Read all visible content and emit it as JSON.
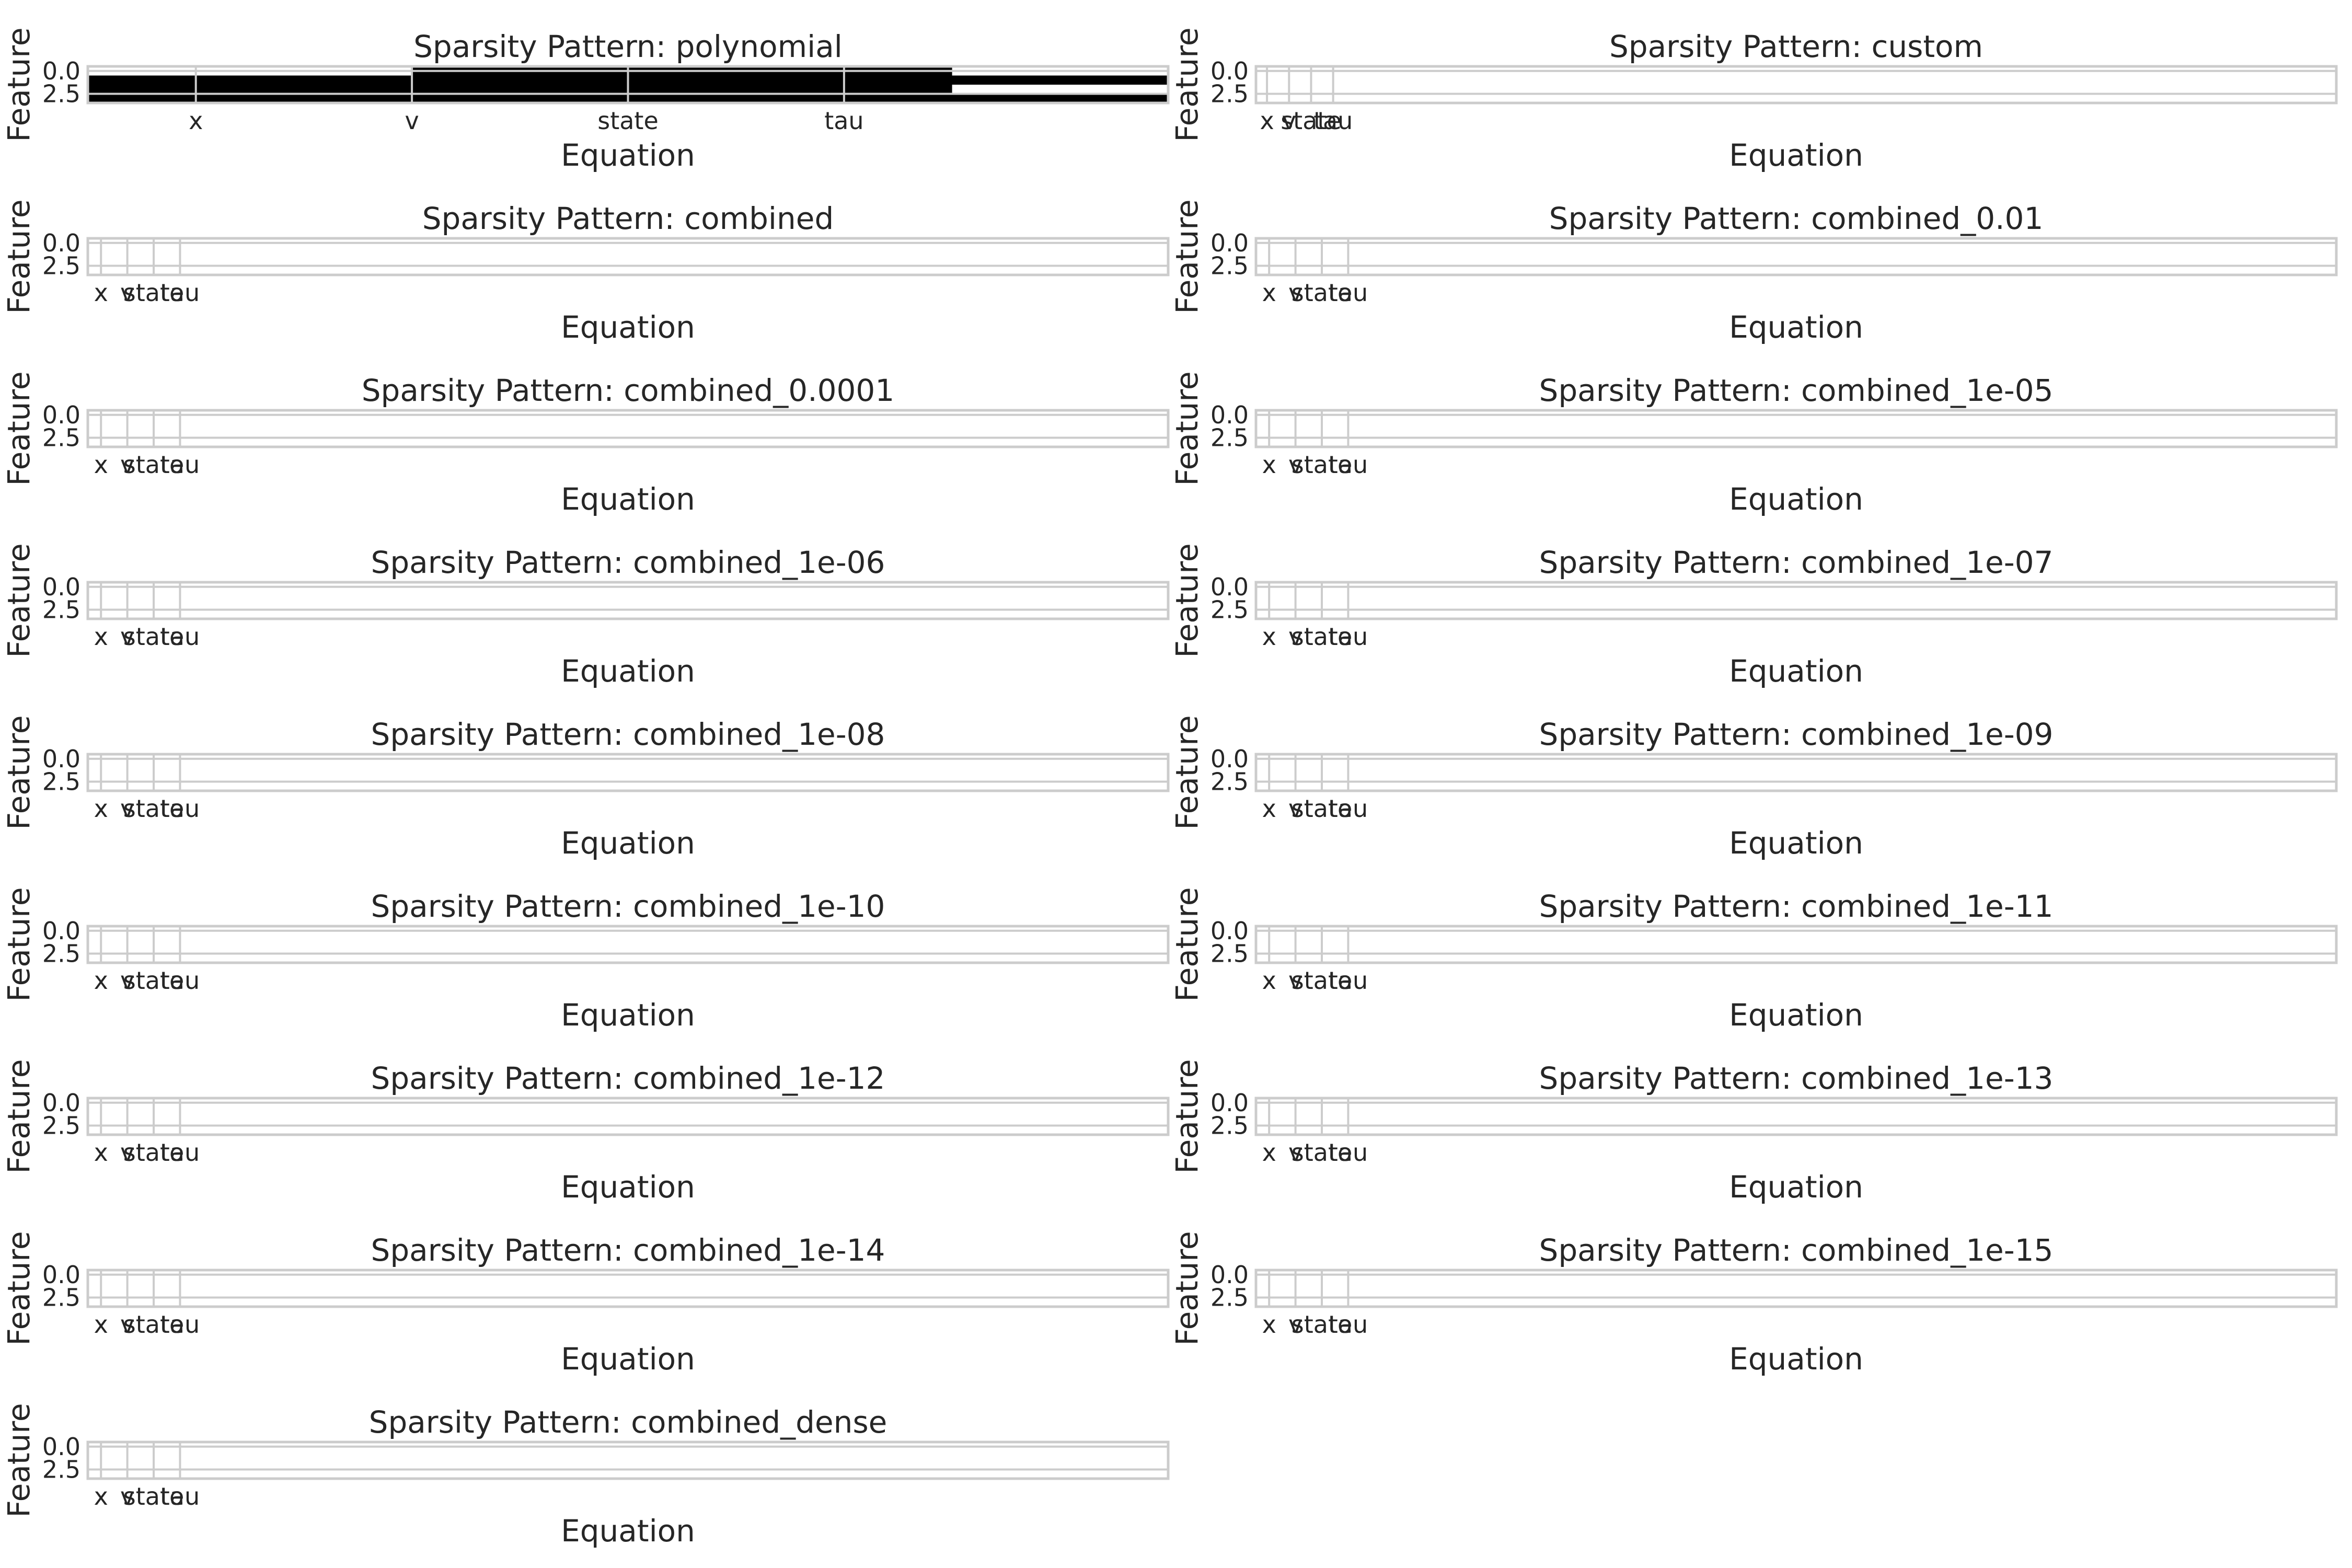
{
  "figure": {
    "background": "#ffffff",
    "grid_color": "#cccccc",
    "axes_edge_color": "#cccccc",
    "cell_fill_color": "#000000",
    "text_color": "#262626"
  },
  "chart_data": [
    {
      "type": "heatmap",
      "title": "Sparsity Pattern: polynomial",
      "xlabel": "Equation",
      "ylabel": "Feature",
      "xticks": [
        "x",
        "v",
        "state",
        "tau"
      ],
      "yticks": [
        "0.0",
        "2.5"
      ],
      "xlim": [
        -0.5,
        4.5
      ],
      "ylim": [
        3.5,
        -0.5
      ],
      "rows": 4,
      "cols": 5,
      "grid": true,
      "cells": [
        {
          "row": 0,
          "col_start": 1,
          "col_end": 3.5
        },
        {
          "row": 1,
          "col_start": -0.5,
          "col_end": 4.5
        },
        {
          "row": 2,
          "col_start": -0.5,
          "col_end": 3.5
        },
        {
          "row": 3,
          "col_start": -0.5,
          "col_end": 4.5
        }
      ]
    },
    {
      "type": "heatmap",
      "title": "Sparsity Pattern: custom",
      "xlabel": "Equation",
      "ylabel": "Feature",
      "xticks": [
        "x",
        "v",
        "state",
        "tau"
      ],
      "yticks": [
        "0.0",
        "2.5"
      ],
      "xlim": [
        -0.5,
        48.5
      ],
      "ylim": [
        3.5,
        -0.5
      ],
      "grid": true,
      "cells": []
    },
    {
      "type": "heatmap",
      "title": "Sparsity Pattern: combined",
      "xlabel": "Equation",
      "ylabel": "Feature",
      "xticks": [
        "x",
        "v",
        "state",
        "tau"
      ],
      "yticks": [
        "0.0",
        "2.5"
      ],
      "xlim": [
        -0.5,
        40.5
      ],
      "ylim": [
        3.5,
        -0.5
      ],
      "grid": true,
      "cells": []
    },
    {
      "type": "heatmap",
      "title": "Sparsity Pattern: combined_0.01",
      "xlabel": "Equation",
      "ylabel": "Feature",
      "xticks": [
        "x",
        "v",
        "state",
        "tau"
      ],
      "yticks": [
        "0.0",
        "2.5"
      ],
      "xlim": [
        -0.5,
        40.5
      ],
      "ylim": [
        3.5,
        -0.5
      ],
      "grid": true,
      "cells": []
    },
    {
      "type": "heatmap",
      "title": "Sparsity Pattern: combined_0.0001",
      "xlabel": "Equation",
      "ylabel": "Feature",
      "xticks": [
        "x",
        "v",
        "state",
        "tau"
      ],
      "yticks": [
        "0.0",
        "2.5"
      ],
      "xlim": [
        -0.5,
        40.5
      ],
      "ylim": [
        3.5,
        -0.5
      ],
      "grid": true,
      "cells": []
    },
    {
      "type": "heatmap",
      "title": "Sparsity Pattern: combined_1e-05",
      "xlabel": "Equation",
      "ylabel": "Feature",
      "xticks": [
        "x",
        "v",
        "state",
        "tau"
      ],
      "yticks": [
        "0.0",
        "2.5"
      ],
      "xlim": [
        -0.5,
        40.5
      ],
      "ylim": [
        3.5,
        -0.5
      ],
      "grid": true,
      "cells": []
    },
    {
      "type": "heatmap",
      "title": "Sparsity Pattern: combined_1e-06",
      "xlabel": "Equation",
      "ylabel": "Feature",
      "xticks": [
        "x",
        "v",
        "state",
        "tau"
      ],
      "yticks": [
        "0.0",
        "2.5"
      ],
      "xlim": [
        -0.5,
        40.5
      ],
      "ylim": [
        3.5,
        -0.5
      ],
      "grid": true,
      "cells": []
    },
    {
      "type": "heatmap",
      "title": "Sparsity Pattern: combined_1e-07",
      "xlabel": "Equation",
      "ylabel": "Feature",
      "xticks": [
        "x",
        "v",
        "state",
        "tau"
      ],
      "yticks": [
        "0.0",
        "2.5"
      ],
      "xlim": [
        -0.5,
        40.5
      ],
      "ylim": [
        3.5,
        -0.5
      ],
      "grid": true,
      "cells": []
    },
    {
      "type": "heatmap",
      "title": "Sparsity Pattern: combined_1e-08",
      "xlabel": "Equation",
      "ylabel": "Feature",
      "xticks": [
        "x",
        "v",
        "state",
        "tau"
      ],
      "yticks": [
        "0.0",
        "2.5"
      ],
      "xlim": [
        -0.5,
        40.5
      ],
      "ylim": [
        3.5,
        -0.5
      ],
      "grid": true,
      "cells": []
    },
    {
      "type": "heatmap",
      "title": "Sparsity Pattern: combined_1e-09",
      "xlabel": "Equation",
      "ylabel": "Feature",
      "xticks": [
        "x",
        "v",
        "state",
        "tau"
      ],
      "yticks": [
        "0.0",
        "2.5"
      ],
      "xlim": [
        -0.5,
        40.5
      ],
      "ylim": [
        3.5,
        -0.5
      ],
      "grid": true,
      "cells": []
    },
    {
      "type": "heatmap",
      "title": "Sparsity Pattern: combined_1e-10",
      "xlabel": "Equation",
      "ylabel": "Feature",
      "xticks": [
        "x",
        "v",
        "state",
        "tau"
      ],
      "yticks": [
        "0.0",
        "2.5"
      ],
      "xlim": [
        -0.5,
        40.5
      ],
      "ylim": [
        3.5,
        -0.5
      ],
      "grid": true,
      "cells": []
    },
    {
      "type": "heatmap",
      "title": "Sparsity Pattern: combined_1e-11",
      "xlabel": "Equation",
      "ylabel": "Feature",
      "xticks": [
        "x",
        "v",
        "state",
        "tau"
      ],
      "yticks": [
        "0.0",
        "2.5"
      ],
      "xlim": [
        -0.5,
        40.5
      ],
      "ylim": [
        3.5,
        -0.5
      ],
      "grid": true,
      "cells": []
    },
    {
      "type": "heatmap",
      "title": "Sparsity Pattern: combined_1e-12",
      "xlabel": "Equation",
      "ylabel": "Feature",
      "xticks": [
        "x",
        "v",
        "state",
        "tau"
      ],
      "yticks": [
        "0.0",
        "2.5"
      ],
      "xlim": [
        -0.5,
        40.5
      ],
      "ylim": [
        3.5,
        -0.5
      ],
      "grid": true,
      "cells": []
    },
    {
      "type": "heatmap",
      "title": "Sparsity Pattern: combined_1e-13",
      "xlabel": "Equation",
      "ylabel": "Feature",
      "xticks": [
        "x",
        "v",
        "state",
        "tau"
      ],
      "yticks": [
        "0.0",
        "2.5"
      ],
      "xlim": [
        -0.5,
        40.5
      ],
      "ylim": [
        3.5,
        -0.5
      ],
      "grid": true,
      "cells": []
    },
    {
      "type": "heatmap",
      "title": "Sparsity Pattern: combined_1e-14",
      "xlabel": "Equation",
      "ylabel": "Feature",
      "xticks": [
        "x",
        "v",
        "state",
        "tau"
      ],
      "yticks": [
        "0.0",
        "2.5"
      ],
      "xlim": [
        -0.5,
        40.5
      ],
      "ylim": [
        3.5,
        -0.5
      ],
      "grid": true,
      "cells": []
    },
    {
      "type": "heatmap",
      "title": "Sparsity Pattern: combined_1e-15",
      "xlabel": "Equation",
      "ylabel": "Feature",
      "xticks": [
        "x",
        "v",
        "state",
        "tau"
      ],
      "yticks": [
        "0.0",
        "2.5"
      ],
      "xlim": [
        -0.5,
        40.5
      ],
      "ylim": [
        3.5,
        -0.5
      ],
      "grid": true,
      "cells": []
    },
    {
      "type": "heatmap",
      "title": "Sparsity Pattern: combined_dense",
      "xlabel": "Equation",
      "ylabel": "Feature",
      "xticks": [
        "x",
        "v",
        "state",
        "tau"
      ],
      "yticks": [
        "0.0",
        "2.5"
      ],
      "xlim": [
        -0.5,
        40.5
      ],
      "ylim": [
        3.5,
        -0.5
      ],
      "grid": true,
      "cells": []
    }
  ]
}
